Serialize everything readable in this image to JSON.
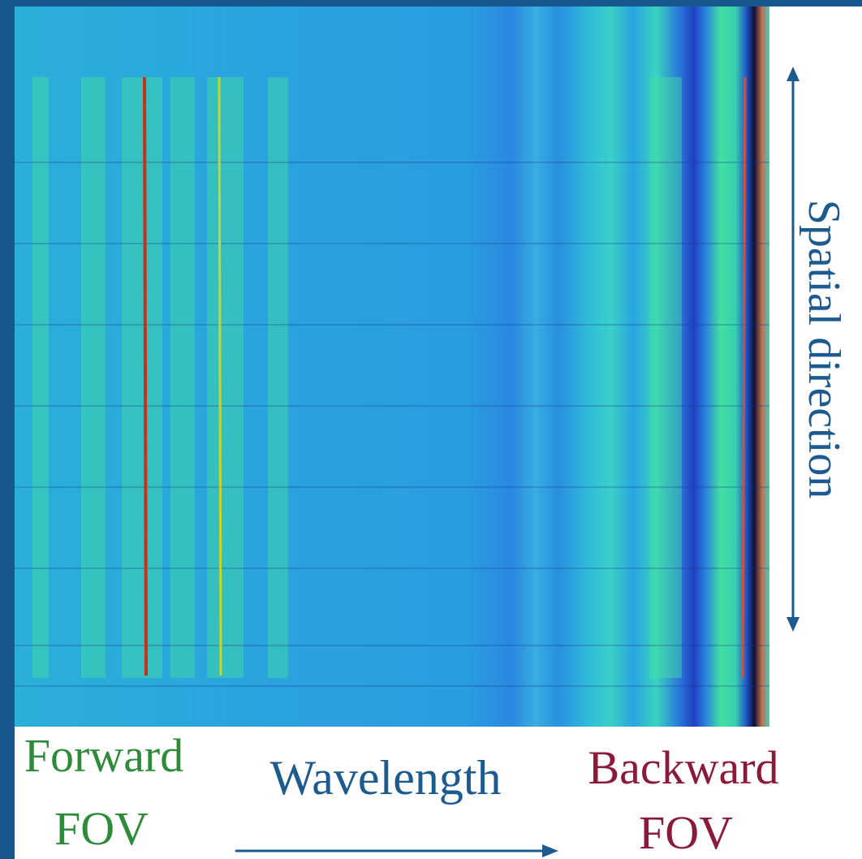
{
  "labels": {
    "forward_fov": {
      "line1": "Forward",
      "line2": "FOV"
    },
    "wavelength": "Wavelength",
    "backward_fov": {
      "line1": "Backward",
      "line2": "FOV"
    },
    "spatial_direction": "Spatial direction"
  }
}
